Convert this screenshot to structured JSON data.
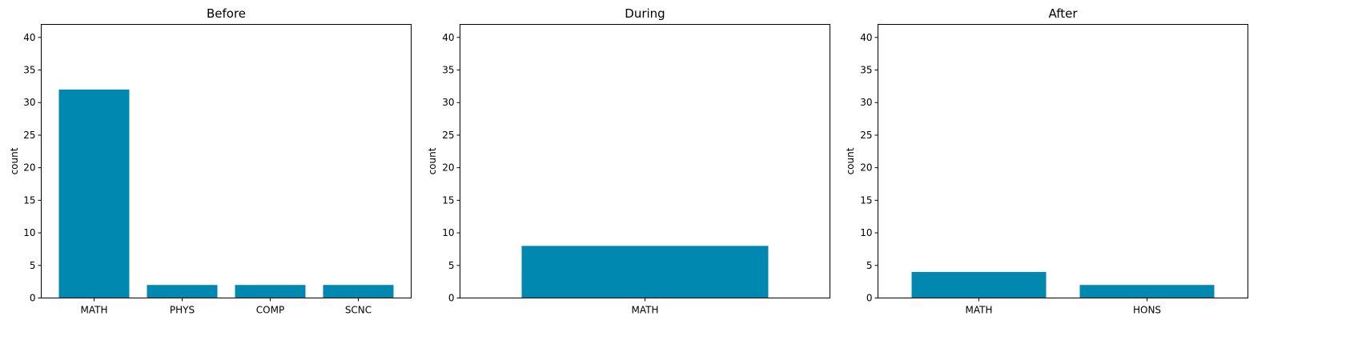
{
  "bar_color": "#0088B0",
  "chart_data": [
    {
      "type": "bar",
      "title": "Before",
      "xlabel": "",
      "ylabel": "count",
      "categories": [
        "MATH",
        "PHYS",
        "COMP",
        "SCNC"
      ],
      "values": [
        32,
        2,
        2,
        2
      ],
      "ylim": [
        0,
        42
      ],
      "yticks": [
        0,
        5,
        10,
        15,
        20,
        25,
        30,
        35,
        40
      ],
      "grid": false
    },
    {
      "type": "bar",
      "title": "During",
      "xlabel": "",
      "ylabel": "count",
      "categories": [
        "MATH"
      ],
      "values": [
        8
      ],
      "ylim": [
        0,
        42
      ],
      "yticks": [
        0,
        5,
        10,
        15,
        20,
        25,
        30,
        35,
        40
      ],
      "grid": false
    },
    {
      "type": "bar",
      "title": "After",
      "xlabel": "",
      "ylabel": "count",
      "categories": [
        "MATH",
        "HONS"
      ],
      "values": [
        4,
        2
      ],
      "ylim": [
        0,
        42
      ],
      "yticks": [
        0,
        5,
        10,
        15,
        20,
        25,
        30,
        35,
        40
      ],
      "grid": false
    }
  ]
}
